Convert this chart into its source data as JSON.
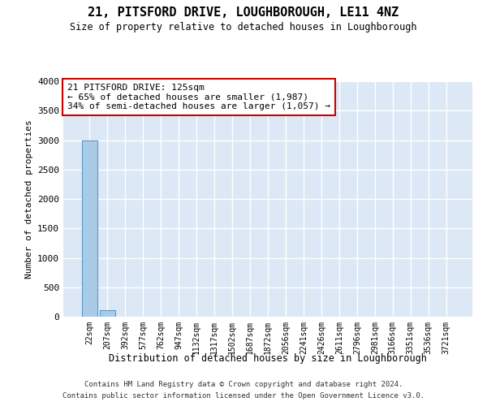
{
  "title": "21, PITSFORD DRIVE, LOUGHBOROUGH, LE11 4NZ",
  "subtitle": "Size of property relative to detached houses in Loughborough",
  "xlabel": "Distribution of detached houses by size in Loughborough",
  "ylabel": "Number of detached properties",
  "categories": [
    "22sqm",
    "207sqm",
    "392sqm",
    "577sqm",
    "762sqm",
    "947sqm",
    "1132sqm",
    "1317sqm",
    "1502sqm",
    "1687sqm",
    "1872sqm",
    "2056sqm",
    "2241sqm",
    "2426sqm",
    "2611sqm",
    "2796sqm",
    "2981sqm",
    "3166sqm",
    "3351sqm",
    "3536sqm",
    "3721sqm"
  ],
  "values": [
    3000,
    110,
    0,
    0,
    0,
    0,
    0,
    0,
    0,
    0,
    0,
    0,
    0,
    0,
    0,
    0,
    0,
    0,
    0,
    0,
    0
  ],
  "bar_color": "#aacbe8",
  "bar_edge_color": "#5a9ac8",
  "ylim": [
    0,
    4000
  ],
  "yticks": [
    0,
    500,
    1000,
    1500,
    2000,
    2500,
    3000,
    3500,
    4000
  ],
  "annotation_box_text": "21 PITSFORD DRIVE: 125sqm\n← 65% of detached houses are smaller (1,987)\n34% of semi-detached houses are larger (1,057) →",
  "annotation_box_color": "#cc0000",
  "background_color": "#dce8f5",
  "grid_color": "#ffffff",
  "footer_line1": "Contains HM Land Registry data © Crown copyright and database right 2024.",
  "footer_line2": "Contains public sector information licensed under the Open Government Licence v3.0."
}
